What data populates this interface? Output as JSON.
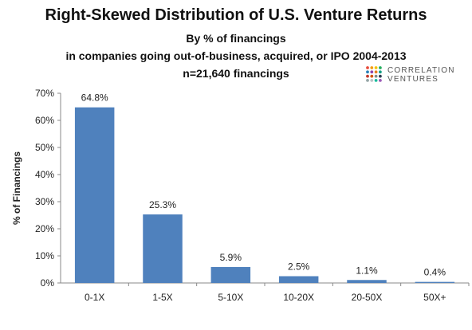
{
  "title": "Right-Skewed Distribution of U.S. Venture Returns",
  "subtitle_lines": [
    "By % of financings",
    "in companies going out-of-business, acquired, or IPO 2004-2013",
    "n=21,640 financings"
  ],
  "logo": {
    "line1": "CORRELATION",
    "line2": "VENTURES",
    "dot_colors": [
      "#e74c3c",
      "#f39c12",
      "#f1c40f",
      "#27ae60",
      "#2980b9",
      "#8e44ad",
      "#e67e22",
      "#16a085",
      "#c0392b",
      "#d35400",
      "#7f8c8d",
      "#2c3e50",
      "#95a5a6",
      "#bdc3c7",
      "#1abc9c",
      "#9b59b6"
    ]
  },
  "chart_data": {
    "type": "bar",
    "title": "Right-Skewed Distribution of U.S. Venture Returns",
    "categories": [
      "0-1X",
      "1-5X",
      "5-10X",
      "10-20X",
      "20-50X",
      "50X+"
    ],
    "values": [
      64.8,
      25.3,
      5.9,
      2.5,
      1.1,
      0.4
    ],
    "data_labels": [
      "64.8%",
      "25.3%",
      "5.9%",
      "2.5%",
      "1.1%",
      "0.4%"
    ],
    "ylabel": "% of Financings",
    "xlabel": "",
    "ylim": [
      0,
      70
    ],
    "yticks": [
      0,
      10,
      20,
      30,
      40,
      50,
      60,
      70
    ],
    "ytick_labels": [
      "0%",
      "10%",
      "20%",
      "30%",
      "40%",
      "50%",
      "60%",
      "70%"
    ],
    "bar_color": "#4f81bd",
    "grid": false,
    "legend": "none"
  }
}
